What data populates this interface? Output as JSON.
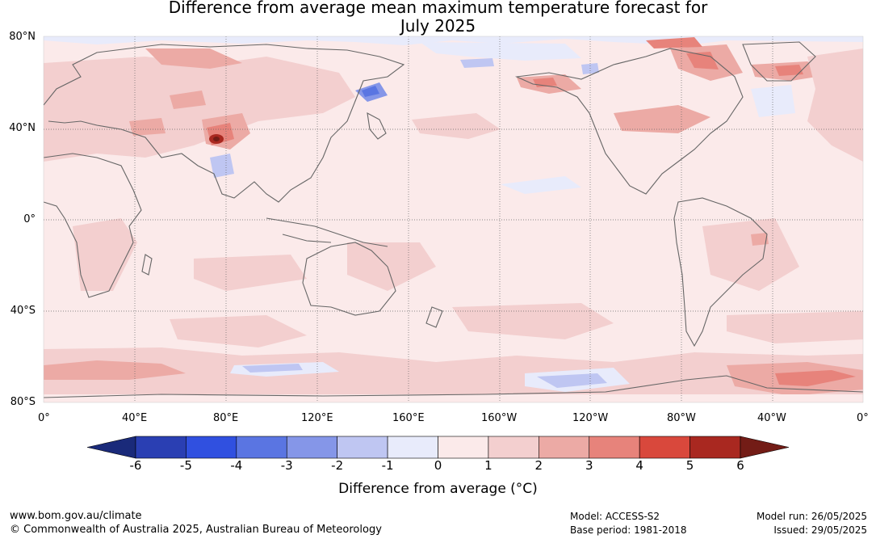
{
  "title_line1": "Difference from average mean maximum temperature forecast for",
  "title_line2": "July 2025",
  "lat_labels": [
    "80°N",
    "40°N",
    "0°",
    "40°S",
    "80°S"
  ],
  "lon_labels": [
    "0°",
    "40°E",
    "80°E",
    "120°E",
    "160°E",
    "160°W",
    "120°W",
    "80°W",
    "40°W",
    "0°"
  ],
  "colorbar": {
    "ticks": [
      "-6",
      "-5",
      "-4",
      "-3",
      "-2",
      "-1",
      "0",
      "1",
      "2",
      "3",
      "4",
      "5",
      "6"
    ],
    "colors": [
      "#1a2a7a",
      "#2a3fb3",
      "#3050e0",
      "#5a75e2",
      "#8596e8",
      "#bfc6f2",
      "#e8ebfb",
      "#fbeaea",
      "#f3cfcf",
      "#ecaaa5",
      "#e7837b",
      "#d9483c",
      "#a92820",
      "#731c16"
    ],
    "label": "Difference from average (°C)"
  },
  "footer": {
    "url": "www.bom.gov.au/climate",
    "copyright": "© Commonwealth of Australia 2025, Australian Bureau of Meteorology",
    "model": "Model: ACCESS-S2",
    "base_period": "Base period: 1981-2018",
    "model_run": "Model run: 26/05/2025",
    "issued": "Issued: 29/05/2025"
  }
}
